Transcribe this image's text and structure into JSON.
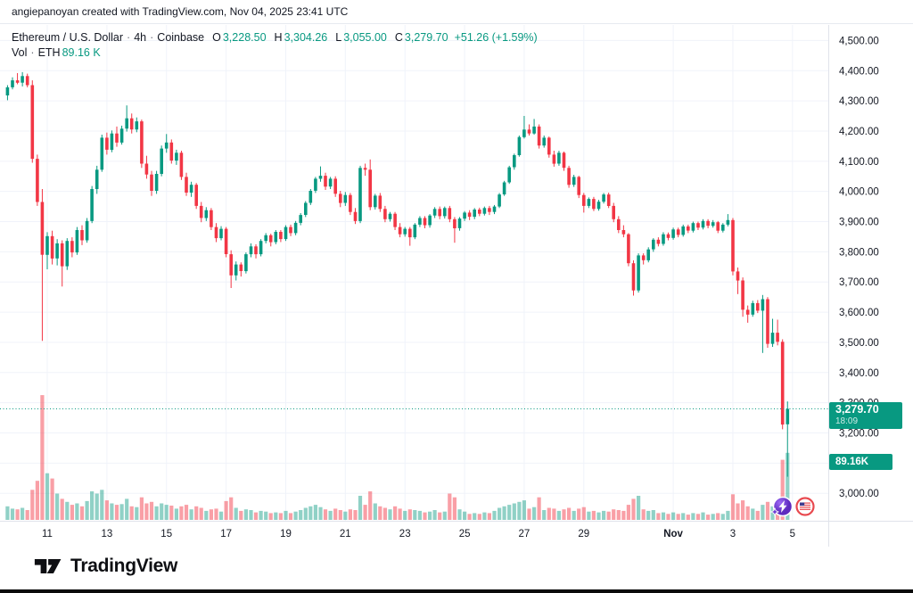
{
  "attribution": "angiepanoyan created with TradingView.com, Nov 04, 2025 23:41 UTC",
  "legend": {
    "symbol_title": "Ethereum / U.S. Dollar",
    "interval": "4h",
    "exchange": "Coinbase",
    "separator": "·",
    "ohlc": [
      {
        "label": "O",
        "value": "3,228.50"
      },
      {
        "label": "H",
        "value": "3,304.26"
      },
      {
        "label": "L",
        "value": "3,055.00"
      },
      {
        "label": "C",
        "value": "3,279.70"
      }
    ],
    "change": "+51.26 (+1.59%)",
    "volume_label": "Vol",
    "volume_symbol": "ETH",
    "volume_value": "89.16 K"
  },
  "price_axis": {
    "ticks": [
      {
        "label": "4,500.00",
        "value": 4500
      },
      {
        "label": "4,400.00",
        "value": 4400
      },
      {
        "label": "4,300.00",
        "value": 4300
      },
      {
        "label": "4,200.00",
        "value": 4200
      },
      {
        "label": "4,100.00",
        "value": 4100
      },
      {
        "label": "4,000.00",
        "value": 4000
      },
      {
        "label": "3,900.00",
        "value": 3900
      },
      {
        "label": "3,800.00",
        "value": 3800
      },
      {
        "label": "3,700.00",
        "value": 3700
      },
      {
        "label": "3,600.00",
        "value": 3600
      },
      {
        "label": "3,500.00",
        "value": 3500
      },
      {
        "label": "3,400.00",
        "value": 3400
      },
      {
        "label": "3,300.00",
        "value": 3300
      },
      {
        "label": "3,200.00",
        "value": 3200
      },
      {
        "label": "3,100.00",
        "value": 3100
      },
      {
        "label": "3,000.00",
        "value": 3000
      }
    ],
    "price_label": {
      "value": "3,279.70",
      "countdown": "18:09"
    },
    "volume_box_value": "89.16K"
  },
  "time_axis": {
    "ticks": [
      {
        "label": "11",
        "index": 8
      },
      {
        "label": "13",
        "index": 20
      },
      {
        "label": "15",
        "index": 32
      },
      {
        "label": "17",
        "index": 44
      },
      {
        "label": "19",
        "index": 56
      },
      {
        "label": "21",
        "index": 68
      },
      {
        "label": "23",
        "index": 80
      },
      {
        "label": "25",
        "index": 92
      },
      {
        "label": "27",
        "index": 104
      },
      {
        "label": "29",
        "index": 116
      },
      {
        "label": "Nov",
        "index": 134,
        "bold": true
      },
      {
        "label": "3",
        "index": 146
      },
      {
        "label": "5",
        "index": 158
      }
    ]
  },
  "event_markers": [
    {
      "type": "lightning"
    },
    {
      "type": "us-flag"
    }
  ],
  "footer": {
    "logo_text": "TradingView"
  },
  "chart_data": {
    "type": "candlestick",
    "title": "Ethereum / U.S. Dollar",
    "interval": "4h",
    "exchange": "Coinbase",
    "ylim": [
      3000,
      4500
    ],
    "grid": true,
    "last_price": 3279.7,
    "last_change": 51.26,
    "last_change_pct": 1.59,
    "current_volume_k": 89.16,
    "volume_unit": "K",
    "columns": [
      "open",
      "high",
      "low",
      "close",
      "volume_k"
    ],
    "ohlcv": [
      [
        4318,
        4352,
        4302,
        4345,
        18
      ],
      [
        4345,
        4378,
        4338,
        4368,
        15
      ],
      [
        4368,
        4392,
        4355,
        4360,
        14
      ],
      [
        4360,
        4395,
        4348,
        4382,
        16
      ],
      [
        4382,
        4390,
        4345,
        4352,
        13
      ],
      [
        4352,
        4368,
        4095,
        4108,
        40
      ],
      [
        4108,
        4122,
        3952,
        3965,
        52
      ],
      [
        3965,
        4008,
        3505,
        3790,
        166
      ],
      [
        3790,
        3865,
        3742,
        3852,
        62
      ],
      [
        3852,
        3870,
        3758,
        3778,
        55
      ],
      [
        3778,
        3842,
        3755,
        3828,
        35
      ],
      [
        3828,
        3838,
        3685,
        3752,
        28
      ],
      [
        3752,
        3845,
        3740,
        3836,
        24
      ],
      [
        3836,
        3848,
        3782,
        3798,
        20
      ],
      [
        3798,
        3882,
        3790,
        3872,
        22
      ],
      [
        3872,
        3888,
        3822,
        3838,
        18
      ],
      [
        3838,
        3912,
        3830,
        3902,
        25
      ],
      [
        3902,
        4018,
        3895,
        4008,
        38
      ],
      [
        4008,
        4085,
        3992,
        4072,
        35
      ],
      [
        4072,
        4188,
        4065,
        4178,
        40
      ],
      [
        4178,
        4195,
        4122,
        4138,
        26
      ],
      [
        4138,
        4202,
        4130,
        4192,
        22
      ],
      [
        4192,
        4215,
        4148,
        4162,
        20
      ],
      [
        4162,
        4218,
        4155,
        4208,
        21
      ],
      [
        4208,
        4285,
        4198,
        4242,
        28
      ],
      [
        4242,
        4258,
        4192,
        4205,
        18
      ],
      [
        4205,
        4245,
        4196,
        4232,
        17
      ],
      [
        4232,
        4238,
        4078,
        4092,
        30
      ],
      [
        4092,
        4118,
        4042,
        4056,
        22
      ],
      [
        4056,
        4068,
        3985,
        4002,
        24
      ],
      [
        4002,
        4068,
        3992,
        4058,
        18
      ],
      [
        4058,
        4152,
        4050,
        4142,
        22
      ],
      [
        4142,
        4190,
        4128,
        4162,
        20
      ],
      [
        4162,
        4172,
        4092,
        4102,
        19
      ],
      [
        4102,
        4138,
        4088,
        4128,
        15
      ],
      [
        4128,
        4135,
        4038,
        4048,
        18
      ],
      [
        4048,
        4062,
        3985,
        3996,
        20
      ],
      [
        3996,
        4032,
        3982,
        4022,
        14
      ],
      [
        4022,
        4028,
        3942,
        3952,
        18
      ],
      [
        3952,
        3965,
        3898,
        3912,
        16
      ],
      [
        3912,
        3948,
        3902,
        3938,
        12
      ],
      [
        3938,
        3945,
        3872,
        3882,
        14
      ],
      [
        3882,
        3895,
        3832,
        3845,
        15
      ],
      [
        3845,
        3885,
        3838,
        3876,
        11
      ],
      [
        3876,
        3882,
        3782,
        3792,
        25
      ],
      [
        3792,
        3805,
        3680,
        3722,
        30
      ],
      [
        3722,
        3768,
        3705,
        3758,
        16
      ],
      [
        3758,
        3765,
        3718,
        3736,
        12
      ],
      [
        3736,
        3798,
        3728,
        3792,
        14
      ],
      [
        3792,
        3828,
        3782,
        3818,
        13
      ],
      [
        3818,
        3825,
        3778,
        3792,
        10
      ],
      [
        3792,
        3842,
        3785,
        3836,
        12
      ],
      [
        3836,
        3862,
        3828,
        3855,
        11
      ],
      [
        3855,
        3860,
        3818,
        3832,
        9
      ],
      [
        3832,
        3872,
        3825,
        3866,
        10
      ],
      [
        3866,
        3872,
        3832,
        3842,
        9
      ],
      [
        3842,
        3888,
        3836,
        3882,
        12
      ],
      [
        3882,
        3890,
        3852,
        3862,
        9
      ],
      [
        3862,
        3902,
        3855,
        3896,
        11
      ],
      [
        3896,
        3928,
        3888,
        3922,
        13
      ],
      [
        3922,
        3968,
        3915,
        3962,
        16
      ],
      [
        3962,
        4008,
        3955,
        4002,
        18
      ],
      [
        4002,
        4048,
        3995,
        4042,
        20
      ],
      [
        4042,
        4083,
        4032,
        4052,
        17
      ],
      [
        4052,
        4062,
        4005,
        4016,
        14
      ],
      [
        4016,
        4048,
        4008,
        4042,
        12
      ],
      [
        4042,
        4050,
        3982,
        3992,
        15
      ],
      [
        3992,
        4002,
        3948,
        3962,
        13
      ],
      [
        3962,
        3998,
        3952,
        3988,
        11
      ],
      [
        3988,
        3995,
        3922,
        3932,
        14
      ],
      [
        3932,
        3945,
        3892,
        3902,
        13
      ],
      [
        3902,
        4085,
        3895,
        4078,
        32
      ],
      [
        4078,
        4092,
        4052,
        4072,
        20
      ],
      [
        4072,
        4106,
        3938,
        3948,
        38
      ],
      [
        3948,
        3992,
        3940,
        3986,
        22
      ],
      [
        3986,
        3995,
        3932,
        3942,
        18
      ],
      [
        3942,
        3952,
        3898,
        3908,
        16
      ],
      [
        3908,
        3932,
        3900,
        3926,
        14
      ],
      [
        3926,
        3932,
        3872,
        3882,
        18
      ],
      [
        3882,
        3895,
        3848,
        3858,
        15
      ],
      [
        3858,
        3882,
        3850,
        3876,
        12
      ],
      [
        3876,
        3882,
        3820,
        3848,
        14
      ],
      [
        3848,
        3895,
        3842,
        3890,
        13
      ],
      [
        3890,
        3918,
        3882,
        3912,
        12
      ],
      [
        3912,
        3918,
        3878,
        3888,
        10
      ],
      [
        3888,
        3925,
        3880,
        3920,
        11
      ],
      [
        3920,
        3948,
        3912,
        3942,
        13
      ],
      [
        3942,
        3950,
        3908,
        3918,
        10
      ],
      [
        3918,
        3950,
        3910,
        3945,
        11
      ],
      [
        3945,
        3952,
        3898,
        3908,
        35
      ],
      [
        3908,
        3915,
        3830,
        3878,
        30
      ],
      [
        3878,
        3915,
        3870,
        3910,
        14
      ],
      [
        3910,
        3935,
        3902,
        3930,
        11
      ],
      [
        3930,
        3938,
        3905,
        3916,
        8
      ],
      [
        3916,
        3945,
        3908,
        3940,
        9
      ],
      [
        3940,
        3946,
        3918,
        3926,
        8
      ],
      [
        3926,
        3950,
        3920,
        3945,
        10
      ],
      [
        3945,
        3952,
        3922,
        3932,
        9
      ],
      [
        3932,
        3955,
        3925,
        3950,
        12
      ],
      [
        3950,
        3995,
        3945,
        3990,
        16
      ],
      [
        3990,
        4035,
        3985,
        4030,
        18
      ],
      [
        4030,
        4085,
        4025,
        4080,
        20
      ],
      [
        4080,
        4125,
        4072,
        4120,
        22
      ],
      [
        4120,
        4185,
        4115,
        4180,
        24
      ],
      [
        4180,
        4250,
        4175,
        4205,
        26
      ],
      [
        4205,
        4222,
        4185,
        4192,
        15
      ],
      [
        4192,
        4240,
        4188,
        4215,
        17
      ],
      [
        4215,
        4222,
        4142,
        4152,
        30
      ],
      [
        4152,
        4185,
        4145,
        4178,
        13
      ],
      [
        4178,
        4182,
        4112,
        4122,
        16
      ],
      [
        4122,
        4135,
        4082,
        4092,
        15
      ],
      [
        4092,
        4135,
        4085,
        4128,
        12
      ],
      [
        4128,
        4132,
        4068,
        4078,
        14
      ],
      [
        4078,
        4085,
        4012,
        4022,
        16
      ],
      [
        4022,
        4055,
        4015,
        4048,
        12
      ],
      [
        4048,
        4052,
        3978,
        3988,
        15
      ],
      [
        3988,
        3995,
        3930,
        3952,
        17
      ],
      [
        3952,
        3980,
        3945,
        3975,
        11
      ],
      [
        3975,
        3982,
        3935,
        3942,
        12
      ],
      [
        3942,
        3972,
        3936,
        3966,
        10
      ],
      [
        3966,
        3995,
        3960,
        3990,
        12
      ],
      [
        3990,
        3996,
        3945,
        3952,
        11
      ],
      [
        3952,
        3962,
        3898,
        3908,
        14
      ],
      [
        3908,
        3918,
        3862,
        3872,
        13
      ],
      [
        3872,
        3888,
        3848,
        3858,
        12
      ],
      [
        3858,
        3862,
        3752,
        3762,
        20
      ],
      [
        3762,
        3772,
        3655,
        3672,
        28
      ],
      [
        3672,
        3795,
        3665,
        3788,
        32
      ],
      [
        3788,
        3795,
        3758,
        3772,
        14
      ],
      [
        3772,
        3815,
        3765,
        3808,
        12
      ],
      [
        3808,
        3845,
        3800,
        3840,
        13
      ],
      [
        3840,
        3848,
        3818,
        3826,
        9
      ],
      [
        3826,
        3865,
        3820,
        3858,
        10
      ],
      [
        3858,
        3864,
        3838,
        3846,
        8
      ],
      [
        3846,
        3880,
        3840,
        3874,
        10
      ],
      [
        3874,
        3880,
        3848,
        3856,
        8
      ],
      [
        3856,
        3890,
        3850,
        3884,
        9
      ],
      [
        3884,
        3890,
        3862,
        3870,
        7
      ],
      [
        3870,
        3900,
        3864,
        3895,
        9
      ],
      [
        3895,
        3900,
        3872,
        3880,
        8
      ],
      [
        3880,
        3908,
        3874,
        3902,
        10
      ],
      [
        3902,
        3908,
        3878,
        3886,
        7
      ],
      [
        3886,
        3905,
        3880,
        3898,
        8
      ],
      [
        3898,
        3902,
        3862,
        3870,
        9
      ],
      [
        3870,
        3895,
        3864,
        3890,
        8
      ],
      [
        3890,
        3925,
        3884,
        3905,
        12
      ],
      [
        3905,
        3912,
        3722,
        3735,
        34
      ],
      [
        3735,
        3748,
        3660,
        3705,
        22
      ],
      [
        3705,
        3715,
        3585,
        3608,
        26
      ],
      [
        3608,
        3622,
        3565,
        3592,
        18
      ],
      [
        3592,
        3638,
        3585,
        3630,
        15
      ],
      [
        3630,
        3640,
        3597,
        3605,
        12
      ],
      [
        3605,
        3657,
        3465,
        3643,
        20
      ],
      [
        3643,
        3650,
        3482,
        3495,
        24
      ],
      [
        3495,
        3578,
        3485,
        3532,
        18
      ],
      [
        3532,
        3575,
        3490,
        3502,
        16
      ],
      [
        3502,
        3510,
        3212,
        3228,
        80
      ],
      [
        3228.5,
        3304.26,
        3055,
        3279.7,
        89.16
      ]
    ],
    "colors": {
      "up": "#089981",
      "down": "#f23645",
      "vol_up": "rgba(8,153,129,0.45)",
      "vol_down": "rgba(242,54,69,0.48)",
      "grid": "#f0f3fa",
      "axis_text": "#131722",
      "axis_line": "#e0e3eb",
      "price_line": "#089981",
      "label_bg": "#089981"
    }
  }
}
